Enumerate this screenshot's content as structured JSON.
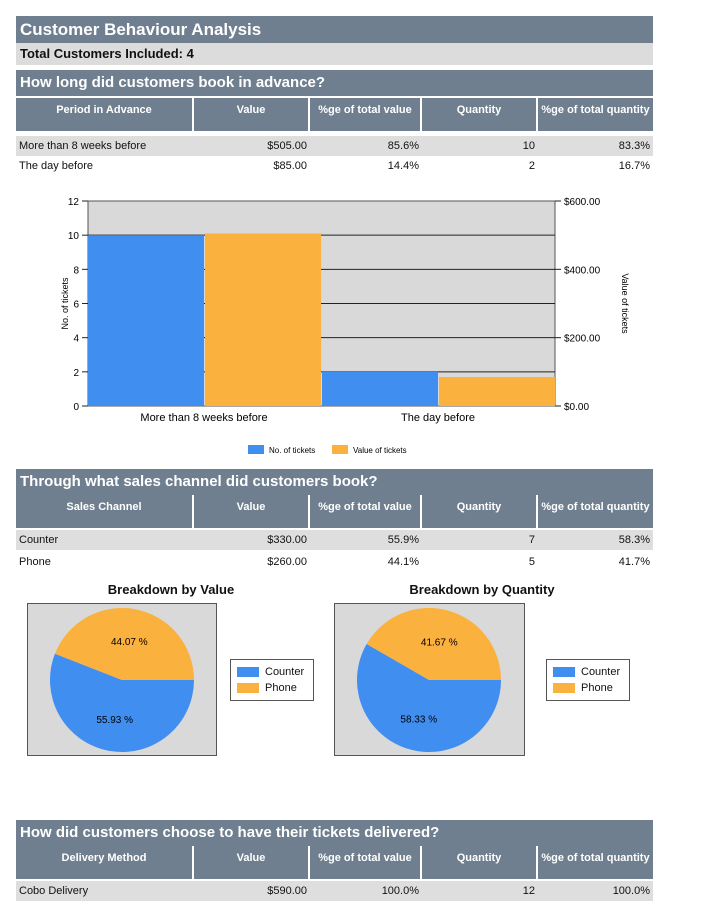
{
  "header": {
    "title": "Customer Behaviour Analysis",
    "total_customers": "Total Customers Included: 4"
  },
  "colors": {
    "primary": "#3f8ef0",
    "secondary": "#fbb13e",
    "header_bg": "#6f7f8f",
    "plot_bg": "#d9d9d9"
  },
  "columns": {
    "value": "Value",
    "pct_value": "%ge of total value",
    "quantity": "Quantity",
    "pct_quantity": "%ge of total quantity"
  },
  "advance": {
    "title": "How long did customers book in advance?",
    "first_col": "Period in Advance",
    "rows": [
      {
        "label": "More than 8 weeks before",
        "value": "$505.00",
        "pct_value": "85.6%",
        "quantity": "10",
        "pct_quantity": "83.3%"
      },
      {
        "label": "The day before",
        "value": "$85.00",
        "pct_value": "14.4%",
        "quantity": "2",
        "pct_quantity": "16.7%"
      }
    ]
  },
  "chart_data": [
    {
      "type": "bar",
      "categories": [
        "More than 8 weeks before",
        "The day before"
      ],
      "series": [
        {
          "name": "No. of tickets",
          "values": [
            10,
            2
          ],
          "axis": "left",
          "color": "#3f8ef0"
        },
        {
          "name": "Value of tickets",
          "values": [
            505,
            85
          ],
          "axis": "right",
          "color": "#fbb13e"
        }
      ],
      "ylabel": "No. of tickets",
      "y2label": "Value of tickets",
      "ylim": [
        0,
        12
      ],
      "y2lim": [
        0,
        600
      ],
      "yticks": [
        "0",
        "2",
        "4",
        "6",
        "8",
        "10",
        "12"
      ],
      "y2ticks": [
        "$0.00",
        "$200.00",
        "$400.00",
        "$600.00"
      ],
      "grid": true,
      "legend": "bottom"
    },
    {
      "type": "pie",
      "title": "Breakdown by Value",
      "labels": [
        "Counter",
        "Phone"
      ],
      "values": [
        55.93,
        44.07
      ],
      "value_labels": [
        "55.93 %",
        "44.07 %"
      ],
      "colors": [
        "#3f8ef0",
        "#fbb13e"
      ],
      "legend": "right"
    },
    {
      "type": "pie",
      "title": "Breakdown by Quantity",
      "labels": [
        "Counter",
        "Phone"
      ],
      "values": [
        58.33,
        41.67
      ],
      "value_labels": [
        "58.33 %",
        "41.67 %"
      ],
      "colors": [
        "#3f8ef0",
        "#fbb13e"
      ],
      "legend": "right"
    }
  ],
  "channel": {
    "title": "Through what sales channel did customers book?",
    "first_col": "Sales Channel",
    "rows": [
      {
        "label": "Counter",
        "value": "$330.00",
        "pct_value": "55.9%",
        "quantity": "7",
        "pct_quantity": "58.3%"
      },
      {
        "label": "Phone",
        "value": "$260.00",
        "pct_value": "44.1%",
        "quantity": "5",
        "pct_quantity": "41.7%"
      }
    ]
  },
  "delivery": {
    "title": "How did customers choose to have their tickets delivered?",
    "first_col": "Delivery Method",
    "rows": [
      {
        "label": "Cobo Delivery",
        "value": "$590.00",
        "pct_value": "100.0%",
        "quantity": "12",
        "pct_quantity": "100.0%"
      }
    ]
  }
}
